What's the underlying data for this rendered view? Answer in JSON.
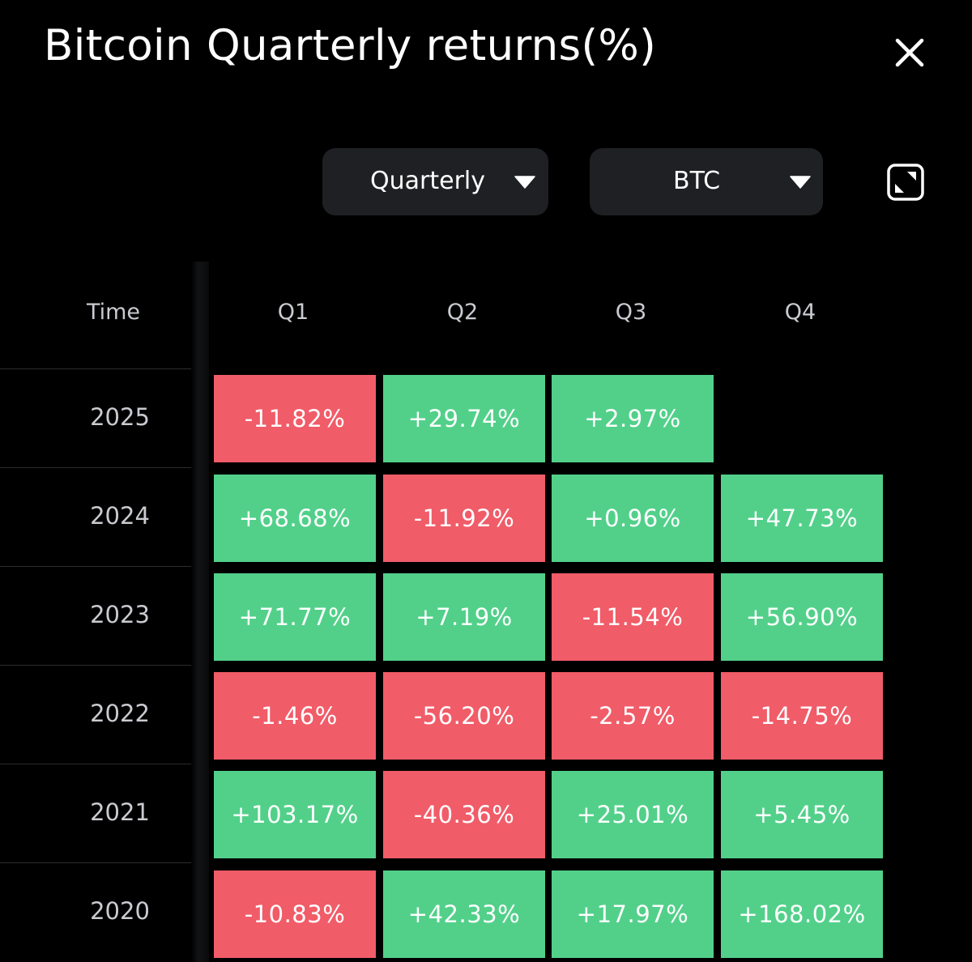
{
  "title": "Bitcoin Quarterly returns(%)",
  "controls": {
    "period_label": "Quarterly",
    "asset_label": "BTC"
  },
  "icons": {
    "close": "close-icon",
    "dropdown": "caret-down-icon",
    "expand": "expand-icon"
  },
  "colors": {
    "positive": "#52d08a",
    "negative": "#f05c68",
    "background": "#000000",
    "control_bg": "#1e2023"
  },
  "table": {
    "time_header": "Time",
    "quarter_headers": [
      "Q1",
      "Q2",
      "Q3",
      "Q4"
    ],
    "rows": [
      {
        "year": "2025",
        "values": [
          "-11.82%",
          "+29.74%",
          "+2.97%",
          ""
        ]
      },
      {
        "year": "2024",
        "values": [
          "+68.68%",
          "-11.92%",
          "+0.96%",
          "+47.73%"
        ]
      },
      {
        "year": "2023",
        "values": [
          "+71.77%",
          "+7.19%",
          "-11.54%",
          "+56.90%"
        ]
      },
      {
        "year": "2022",
        "values": [
          "-1.46%",
          "-56.20%",
          "-2.57%",
          "-14.75%"
        ]
      },
      {
        "year": "2021",
        "values": [
          "+103.17%",
          "-40.36%",
          "+25.01%",
          "+5.45%"
        ]
      },
      {
        "year": "2020",
        "values": [
          "-10.83%",
          "+42.33%",
          "+17.97%",
          "+168.02%"
        ]
      }
    ]
  }
}
